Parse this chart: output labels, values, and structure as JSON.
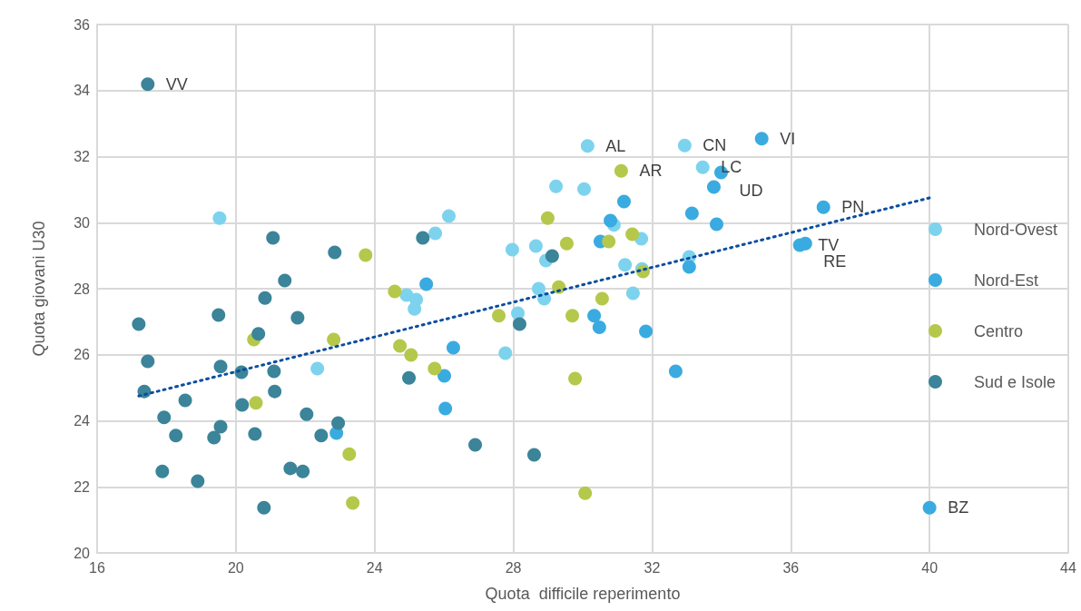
{
  "chart_data": {
    "type": "scatter",
    "xlabel": "Quota  difficile reperimento",
    "ylabel": "Quota giovani U30",
    "xlim": [
      16,
      44
    ],
    "xticks": [
      16,
      20,
      24,
      28,
      32,
      36,
      40,
      44
    ],
    "ylim": [
      20,
      36
    ],
    "yticks": [
      20,
      22,
      24,
      26,
      28,
      30,
      32,
      34,
      36
    ],
    "grid": true,
    "legend": "right",
    "marker": "circle",
    "series": [
      {
        "name": "Nord-Ovest",
        "color": "#7dd3ee",
        "x": [
          19.53,
          22.35,
          25.75,
          26.14,
          24.92,
          25.2,
          25.15,
          27.97,
          28.65,
          28.94,
          28.73,
          28.89,
          28.13,
          27.77,
          29.23,
          30.04,
          30.9,
          31.69,
          31.22,
          31.45,
          31.71,
          30.14,
          32.94,
          33.46,
          33.07
        ],
        "values": [
          30.14,
          25.58,
          29.68,
          30.2,
          27.81,
          27.67,
          27.39,
          29.18,
          29.29,
          28.85,
          28.0,
          27.7,
          27.26,
          26.05,
          31.1,
          31.02,
          29.93,
          29.51,
          28.72,
          27.86,
          28.6,
          32.32,
          32.34,
          31.68,
          28.96
        ]
      },
      {
        "name": "Nord-Est",
        "color": "#3aabe0",
        "x": [
          22.9,
          25.49,
          26.27,
          26.01,
          26.04,
          31.19,
          30.8,
          30.51,
          30.33,
          30.48,
          31.82,
          35.16,
          33.99,
          33.78,
          33.15,
          33.86,
          33.07,
          32.68,
          36.26,
          36.42,
          36.94,
          40.0
        ],
        "values": [
          23.63,
          28.14,
          26.21,
          25.36,
          24.37,
          30.64,
          30.06,
          29.43,
          27.18,
          26.83,
          26.71,
          32.54,
          31.52,
          31.08,
          30.28,
          29.95,
          28.66,
          25.5,
          29.32,
          29.37,
          30.47,
          21.37
        ]
      },
      {
        "name": "Centro",
        "color": "#b5c84b",
        "x": [
          23.74,
          20.52,
          22.82,
          20.58,
          23.27,
          23.37,
          24.58,
          24.73,
          25.05,
          25.73,
          27.58,
          28.99,
          29.54,
          29.31,
          31.11,
          30.75,
          31.43,
          31.74,
          30.56,
          29.7,
          29.78,
          30.07
        ],
        "values": [
          29.02,
          26.46,
          26.46,
          24.54,
          22.99,
          21.51,
          27.92,
          26.27,
          25.99,
          25.58,
          27.18,
          30.14,
          29.37,
          28.05,
          31.57,
          29.43,
          29.65,
          28.52,
          27.7,
          27.18,
          25.28,
          21.81
        ]
      },
      {
        "name": "Sud e Isole",
        "color": "#3b8499",
        "x": [
          17.46,
          21.07,
          22.85,
          21.41,
          20.84,
          17.2,
          19.5,
          21.78,
          20.65,
          17.46,
          19.56,
          20.16,
          21.1,
          17.36,
          18.54,
          21.12,
          20.18,
          22.04,
          17.93,
          19.56,
          22.95,
          18.27,
          19.37,
          20.55,
          22.46,
          17.88,
          18.9,
          21.57,
          21.93,
          20.81,
          25.39,
          29.12,
          28.18,
          24.99,
          26.9,
          28.6
        ],
        "values": [
          34.19,
          29.54,
          29.1,
          28.25,
          27.72,
          26.93,
          27.2,
          27.12,
          26.63,
          25.8,
          25.64,
          25.47,
          25.5,
          24.89,
          24.62,
          24.89,
          24.48,
          24.2,
          24.1,
          23.82,
          23.93,
          23.55,
          23.49,
          23.6,
          23.55,
          22.47,
          22.17,
          22.56,
          22.47,
          21.37,
          29.54,
          28.99,
          26.93,
          25.3,
          23.27,
          22.97
        ]
      },
      {
        "type": "line",
        "color": "#0a4ea0",
        "line_style": "dotted",
        "marker": "none",
        "x": [
          17.2,
          40
        ],
        "values": [
          24.75,
          30.75
        ]
      }
    ],
    "annotations": [
      {
        "text": "VV",
        "x": 17.46,
        "y": 34.19
      },
      {
        "text": "AL",
        "x": 30.14,
        "y": 32.32
      },
      {
        "text": "CN",
        "x": 32.94,
        "y": 32.34
      },
      {
        "text": "VI",
        "x": 35.16,
        "y": 32.54
      },
      {
        "text": "AR",
        "x": 31.11,
        "y": 31.57
      },
      {
        "text": "LC",
        "x": 33.46,
        "y": 31.68
      },
      {
        "text": "UD",
        "x": 33.99,
        "y": 31.52
      },
      {
        "text": "PN",
        "x": 36.94,
        "y": 30.47
      },
      {
        "text": "TV",
        "x": 36.26,
        "y": 29.32
      },
      {
        "text": "RE",
        "x": 36.42,
        "y": 29.37
      },
      {
        "text": "BZ",
        "x": 40.0,
        "y": 21.37
      }
    ]
  }
}
